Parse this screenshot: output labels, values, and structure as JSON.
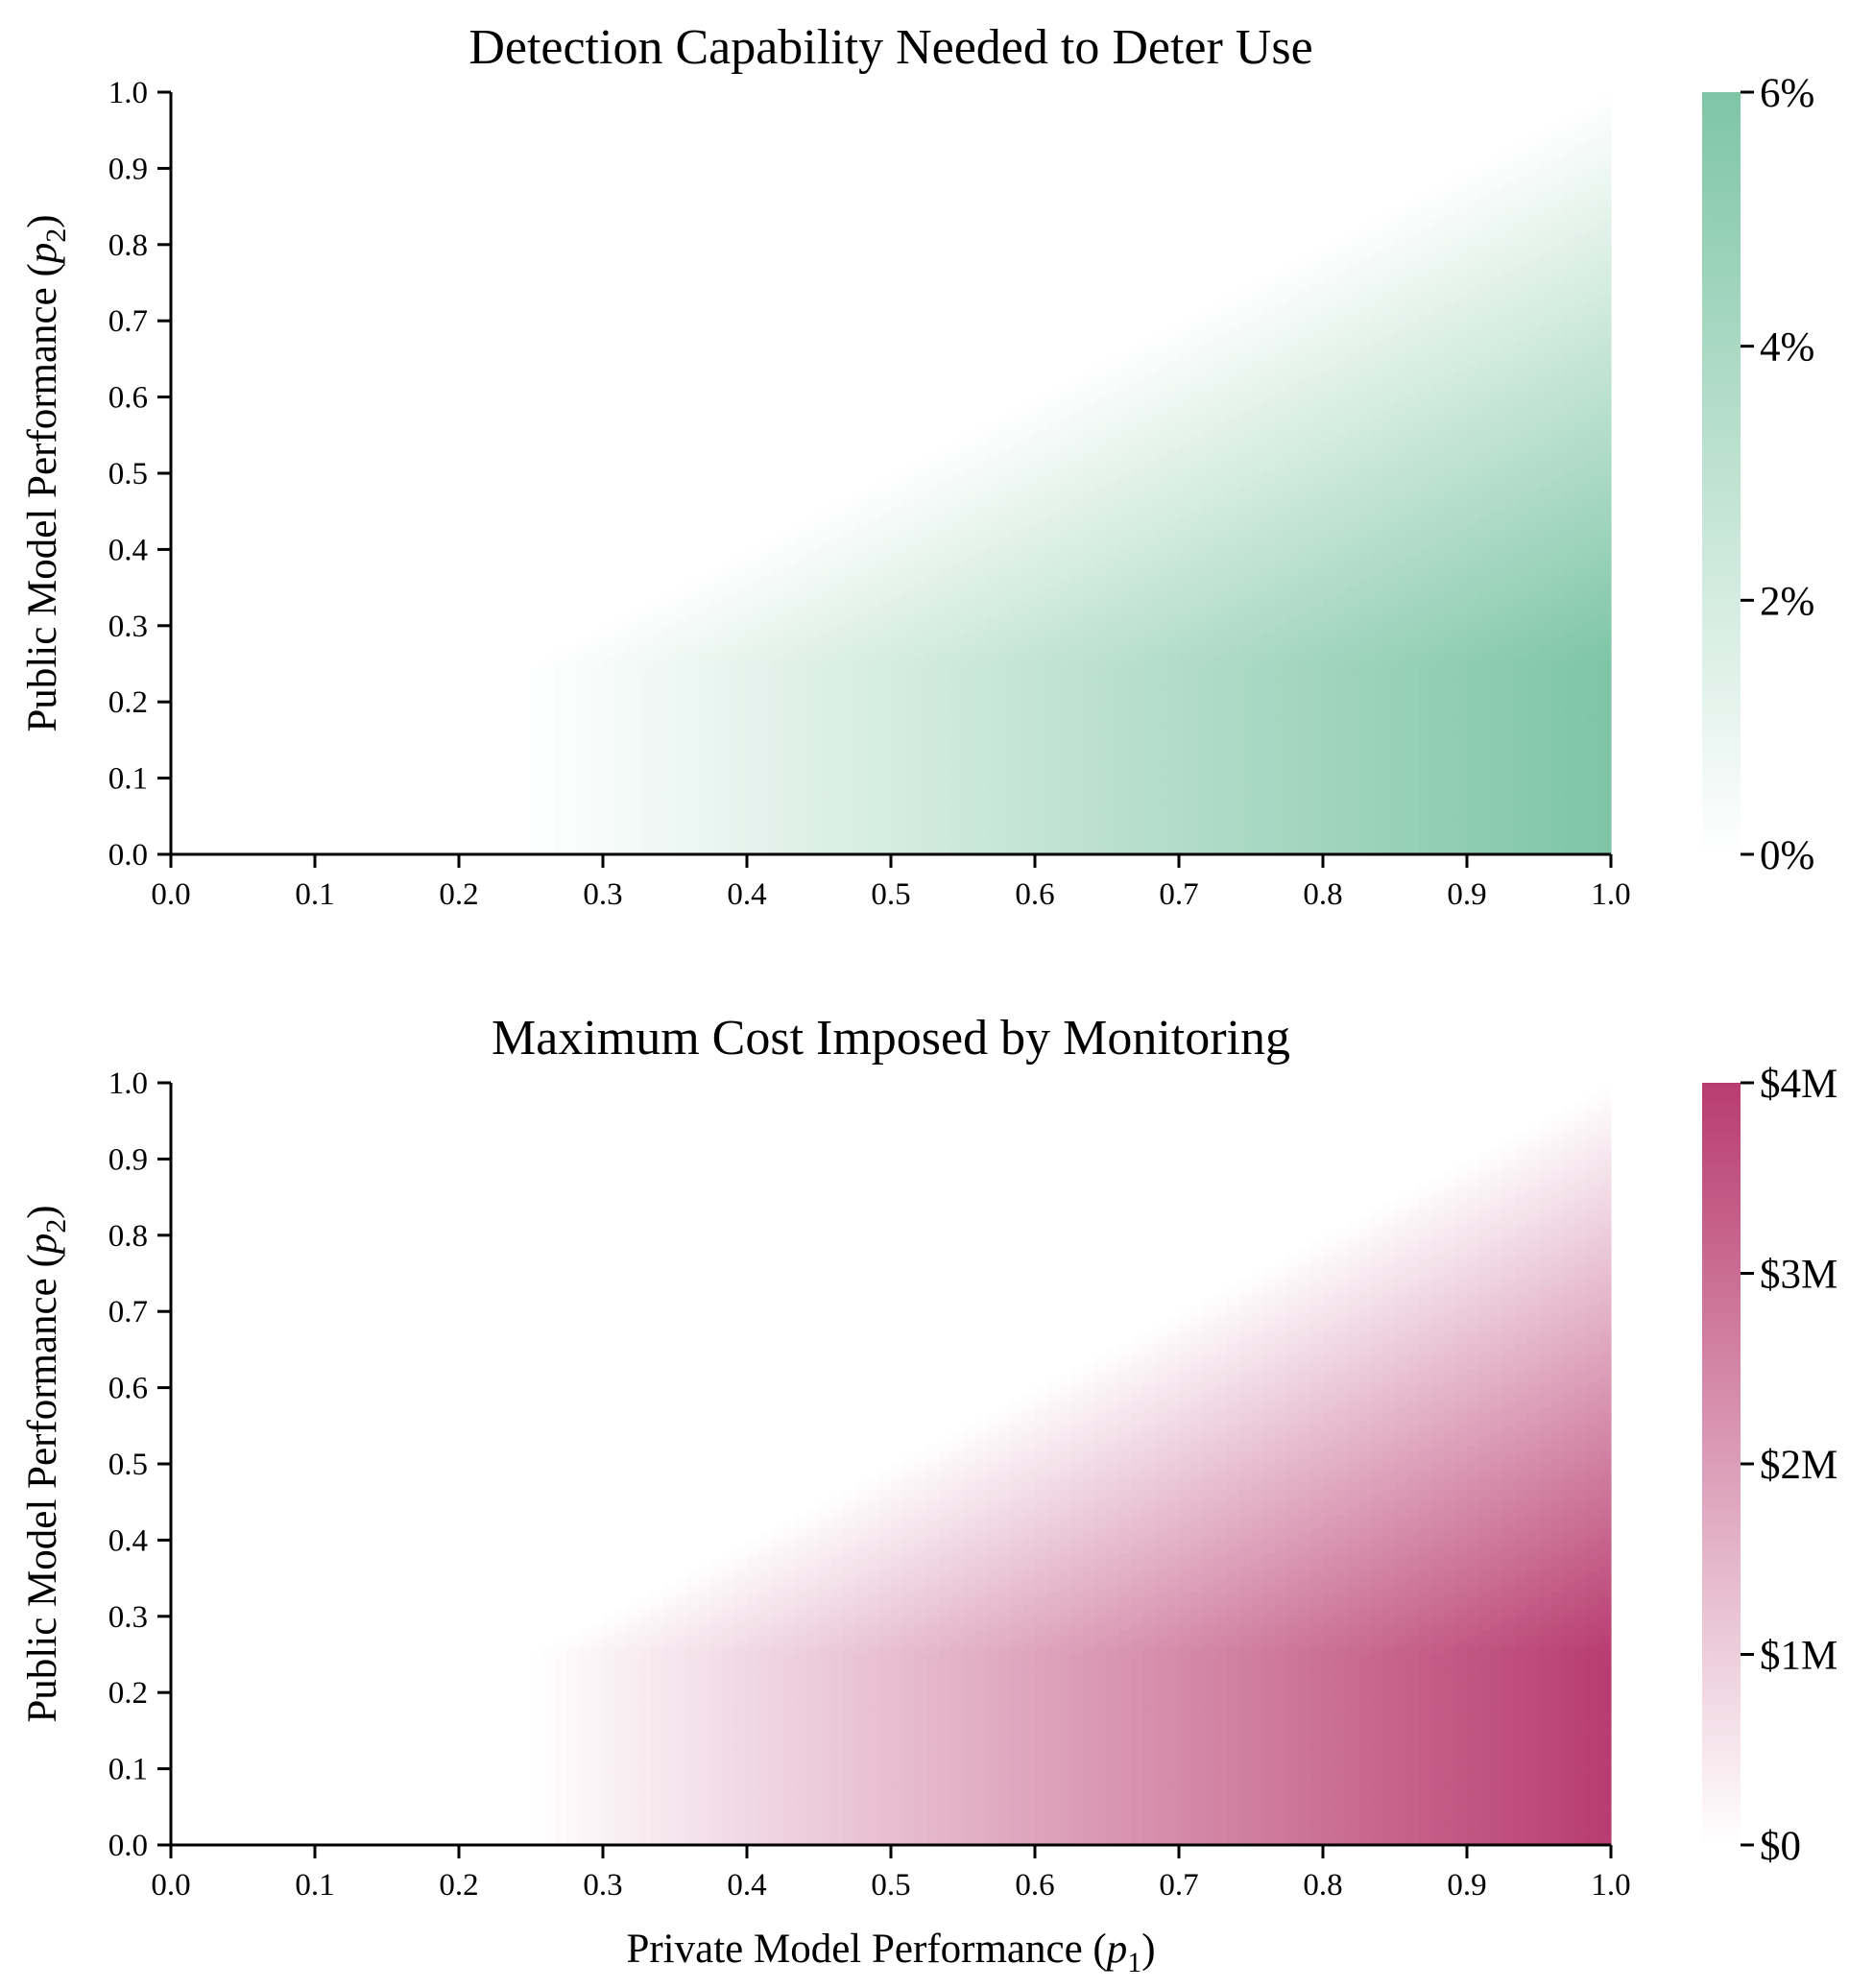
{
  "chart_data": [
    {
      "type": "heatmap",
      "title": "Detection Capability Needed to Deter Use",
      "xlabel": "",
      "ylabel": "Public Model Performance (p₂)",
      "ylabel_main": "Public Model Performance (",
      "ylabel_var": "p",
      "ylabel_sub": "2",
      "ylabel_close": ")",
      "xlim": [
        0,
        1
      ],
      "ylim": [
        0,
        1
      ],
      "xticks": [
        "0.0",
        "0.1",
        "0.2",
        "0.3",
        "0.4",
        "0.5",
        "0.6",
        "0.7",
        "0.8",
        "0.9",
        "1.0"
      ],
      "yticks": [
        "0.0",
        "0.1",
        "0.2",
        "0.3",
        "0.4",
        "0.5",
        "0.6",
        "0.7",
        "0.8",
        "0.9",
        "1.0"
      ],
      "colorbar": {
        "min": 0,
        "max": 6,
        "unit": "%",
        "ticks": [
          0,
          2,
          4,
          6
        ],
        "tick_labels": [
          "0%",
          "2%",
          "4%",
          "6%"
        ],
        "color_low": "#ffffff",
        "color_high": "#7ec5a6"
      },
      "model": {
        "description_value": "value(p1,p2) = max * ((p1 - max(p2,0.25)) / 0.75) clipped at 0; band p2<0.25 uses p1 ramp from 0.25",
        "threshold": 0.25,
        "max_value": 6
      },
      "grid": false
    },
    {
      "type": "heatmap",
      "title": "Maximum Cost Imposed by Monitoring",
      "xlabel": "Private Model Performance (p₁)",
      "xlabel_main": "Private Model Performance (",
      "xlabel_var": "p",
      "xlabel_sub": "1",
      "xlabel_close": ")",
      "ylabel": "Public Model Performance (p₂)",
      "ylabel_main": "Public Model Performance (",
      "ylabel_var": "p",
      "ylabel_sub": "2",
      "ylabel_close": ")",
      "xlim": [
        0,
        1
      ],
      "ylim": [
        0,
        1
      ],
      "xticks": [
        "0.0",
        "0.1",
        "0.2",
        "0.3",
        "0.4",
        "0.5",
        "0.6",
        "0.7",
        "0.8",
        "0.9",
        "1.0"
      ],
      "yticks": [
        "0.0",
        "0.1",
        "0.2",
        "0.3",
        "0.4",
        "0.5",
        "0.6",
        "0.7",
        "0.8",
        "0.9",
        "1.0"
      ],
      "colorbar": {
        "min": 0,
        "max": 4,
        "unit": "$M",
        "ticks": [
          0,
          1,
          2,
          3,
          4
        ],
        "tick_labels": [
          "$0",
          "$1M",
          "$2M",
          "$3M",
          "$4M"
        ],
        "color_low": "#ffffff",
        "color_high": "#b83c70"
      },
      "model": {
        "description_value": "value(p1,p2) = max * ((p1 - max(p2,0.25)) / 0.75) clipped at 0",
        "threshold": 0.25,
        "max_value": 4
      },
      "grid": false
    }
  ]
}
